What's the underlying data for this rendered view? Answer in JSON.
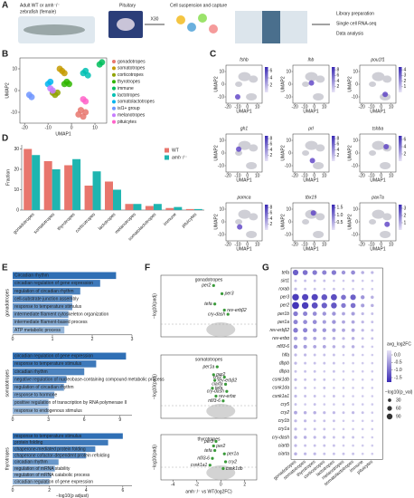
{
  "panel_labels": [
    "A",
    "B",
    "C",
    "D",
    "E",
    "F",
    "G"
  ],
  "workflow": {
    "source_line1": "Adult WT or amh⁻/⁻",
    "source_line2": "zebrafish (female)",
    "organ": "Pituitary",
    "multiplier": "X30",
    "capture": "Cell suspension and capture",
    "steps": [
      "Library preparation",
      "Single cell RNA-seq",
      "Data analysis"
    ]
  },
  "chart_data": [
    {
      "type": "scatter",
      "xlabel": "UMAP1",
      "ylabel": "UMAP2",
      "xlim": [
        -22,
        15
      ],
      "ylim": [
        -15,
        15
      ],
      "xticks": [
        -20,
        -10,
        0,
        10
      ],
      "yticks": [
        -10,
        0,
        10
      ],
      "series": [
        {
          "name": "gonadotropes",
          "color": "#e8766d",
          "x": [
            3,
            5,
            6,
            4
          ],
          "values": [
            -11,
            -12,
            -10,
            -9
          ]
        },
        {
          "name": "somatotropes",
          "color": "#c49a00",
          "x": [
            -4,
            -3,
            -5
          ],
          "values": [
            9,
            8,
            10
          ]
        },
        {
          "name": "corticotropes",
          "color": "#8fa300",
          "x": [
            -8,
            -7,
            -6
          ],
          "values": [
            -1,
            -2,
            -1
          ]
        },
        {
          "name": "thyrotropes",
          "color": "#2fb600",
          "x": [
            -2,
            -1,
            -3
          ],
          "values": [
            4,
            3,
            3
          ]
        },
        {
          "name": "immune",
          "color": "#00bd5c",
          "x": [
            12,
            13
          ],
          "values": [
            12,
            13
          ]
        },
        {
          "name": "lactotropes",
          "color": "#00c0b3",
          "x": [
            5,
            6,
            7
          ],
          "values": [
            8,
            9,
            7
          ]
        },
        {
          "name": "somatolactotropes",
          "color": "#00b4ef",
          "x": [
            -10,
            -9
          ],
          "values": [
            3,
            4
          ]
        },
        {
          "name": "isl1+ group",
          "color": "#6e95ff",
          "x": [
            -18,
            -17
          ],
          "values": [
            -2,
            -3
          ]
        },
        {
          "name": "melanotropes",
          "color": "#c77cff",
          "x": [
            -9,
            -8
          ],
          "values": [
            1,
            0
          ]
        },
        {
          "name": "pituicytes",
          "color": "#ff61c9",
          "x": [
            5,
            6
          ],
          "values": [
            -4,
            -5
          ]
        }
      ]
    },
    {
      "type": "feature",
      "xlabel": "UMAP1",
      "ylabel": "UMAP2",
      "xlim": [
        -22,
        15
      ],
      "ylim": [
        -15,
        15
      ],
      "xticks": [
        -20,
        -10,
        0,
        10
      ],
      "yticks": [
        -10,
        0,
        10
      ],
      "genes": [
        {
          "name": "fshb",
          "lim": [
            0,
            7
          ],
          "ticks": [
            2,
            4,
            6
          ]
        },
        {
          "name": "lhb",
          "lim": [
            0,
            9
          ],
          "ticks": [
            2,
            4,
            6,
            8
          ]
        },
        {
          "name": "pou1f1",
          "lim": [
            0,
            4.5
          ],
          "ticks": [
            1,
            2,
            3,
            4
          ]
        },
        {
          "name": "gh1",
          "lim": [
            0,
            9
          ],
          "ticks": [
            2,
            4,
            6,
            8
          ]
        },
        {
          "name": "prl",
          "lim": [
            0,
            9
          ],
          "ticks": [
            2,
            4,
            6,
            8
          ]
        },
        {
          "name": "tshba",
          "lim": [
            0,
            7
          ],
          "ticks": [
            2,
            4,
            6
          ]
        },
        {
          "name": "pomca",
          "lim": [
            0,
            9
          ],
          "ticks": [
            2,
            4,
            6,
            8
          ]
        },
        {
          "name": "tbx19",
          "lim": [
            0,
            1.7
          ],
          "ticks": [
            0.5,
            {
              "value": 1,
              "label": "1.0"
            },
            1.5
          ]
        },
        {
          "name": "pax7a",
          "lim": [
            0,
            3.5
          ],
          "ticks": [
            1,
            2,
            3
          ]
        }
      ]
    },
    {
      "type": "bar",
      "ylabel": "Fraction",
      "ylim": [
        0,
        32
      ],
      "yticks": [
        0,
        10,
        20,
        30
      ],
      "categories": [
        "gonadotropes",
        "somatotropes",
        "thyrotropes",
        "corticotropes",
        "lactotropes",
        "melanotropes",
        "somatolactotropes",
        "immune",
        "pituicytes"
      ],
      "series": [
        {
          "name": "WT",
          "color": "#e8766d",
          "values": [
            30,
            24,
            22,
            12,
            14,
            3,
            2,
            1,
            0.5
          ]
        },
        {
          "name": "amh⁻/⁻",
          "color": "#1fb5b0",
          "values": [
            27,
            20,
            25,
            19,
            10,
            3,
            3,
            1.5,
            0.5
          ]
        }
      ]
    },
    {
      "type": "barh",
      "ylabel": "gonadotropes",
      "color": "#2f6fb5",
      "xlim": [
        0,
        3
      ],
      "xticks": [
        0,
        1,
        2,
        3
      ],
      "categories": [
        "Circadian rhythm",
        "circadian regulation of gene expression",
        "regulation of circadian rhythm",
        "cell-substrate junction assembly",
        "response to temperature stimulus",
        "intermediate filament cytoskeleton organization",
        "intermediate filament-based process",
        "ATP metabolic process"
      ],
      "values": [
        2.6,
        2.2,
        1.7,
        1.5,
        1.5,
        1.4,
        1.4,
        1.3
      ]
    },
    {
      "type": "barh",
      "ylabel": "somatotropes",
      "color": "#2f6fb5",
      "xlim": [
        0,
        10
      ],
      "xticks": [
        0,
        3,
        6,
        9
      ],
      "categories": [
        "circadian regulation of gene expression",
        "response to temperature stimulus",
        "circadian rhythm",
        "negative regulation of nucleobase-containing compound metabolic process",
        "regulation of circadian rhythm",
        "response to hormone",
        "positive regulation of transcription by RNA polymerase II",
        "response to endogenous stimulus"
      ],
      "values": [
        9.5,
        7,
        6,
        4.5,
        4.3,
        3.5,
        3,
        3
      ]
    },
    {
      "type": "barh",
      "ylabel": "thyrotropes",
      "xlabel": "−log10(p adjust)",
      "color": "#2f6fb5",
      "xlim": [
        0,
        6.5
      ],
      "xticks": [
        0,
        2,
        4,
        6
      ],
      "categories": [
        "response to temperature stimulus",
        "protein folding",
        "chaperone-mediated protein folding",
        "chaperone cofactor-dependent protein refolding",
        "circadian rhythm",
        "regulation of mRNA stability",
        "regulation of mRNA catabolic process",
        "circadian regulation of gene expression"
      ],
      "values": [
        6,
        5.2,
        4.5,
        4,
        2.5,
        2.3,
        2.1,
        2
      ]
    },
    {
      "type": "volcano",
      "title": "gonadotropes",
      "ylabel": "−log10(padj)",
      "color": "#3a9a3a",
      "xlim": [
        -5,
        3
      ],
      "ylim": [
        0,
        6
      ],
      "labels": [
        "per2",
        "per3",
        "tefa",
        "rev-erbβ2",
        "cry-dash"
      ],
      "x": [
        -0.6,
        0.1,
        -0.5,
        0.3,
        0.6
      ],
      "values": [
        5,
        4.2,
        3.2,
        2.6,
        2.2
      ]
    },
    {
      "type": "volcano",
      "title": "somatotropes",
      "ylabel": "−log10(padj)",
      "color": "#3a9a3a",
      "xlim": [
        -5,
        3
      ],
      "ylim": [
        0,
        8
      ],
      "labels": [
        "per1a",
        "per2",
        "cry2",
        "rev-erbβ2",
        "ciarta",
        "tefa",
        "cry-dash",
        "rev-erbα",
        "nfil3-6"
      ],
      "x": [
        -0.3,
        -0.6,
        0.3,
        -0.5,
        0.4,
        -0.7,
        0.5,
        -0.4,
        0.2
      ],
      "values": [
        6.5,
        5.5,
        5.2,
        4.8,
        4.3,
        3.8,
        3.4,
        2.8,
        2.2
      ]
    },
    {
      "type": "volcano",
      "title": "thyrotropes",
      "ylabel": "−log10(padj)",
      "xlabel": "amh⁻/⁻ vs WT(log2FC)",
      "color": "#3a9a3a",
      "xlim": [
        -5,
        3
      ],
      "ylim": [
        0,
        8
      ],
      "xticks": [
        -4,
        -2,
        0,
        2
      ],
      "labels": [
        "per3",
        "per2",
        "tefa",
        "per1a",
        "nfil3-6",
        "cry2",
        "csnk1a1",
        "csnk1db"
      ],
      "x": [
        -0.4,
        -0.6,
        -0.5,
        0.3,
        -0.7,
        0.4,
        -0.9,
        0.2
      ],
      "values": [
        6.8,
        6,
        5.2,
        4.6,
        3.8,
        3.2,
        2.6,
        2
      ]
    },
    {
      "type": "dot",
      "color_label": "avg_log2FC",
      "clim": [
        -1.8,
        0.3
      ],
      "cticks": [
        {
          "value": 0,
          "label": "0.0"
        },
        -0.5,
        {
          "value": -1,
          "label": "-1.0"
        },
        -1.5
      ],
      "size_label": "−log10(p_val)",
      "size_ticks": [
        30,
        60,
        90
      ],
      "categories": [
        "gonadotropes",
        "somatotropes",
        "thyrotropes",
        "corticotropes",
        "lactotropes",
        "melanotropes",
        "somatolactotropes",
        "immune",
        "pituicytes"
      ],
      "genes": [
        "tefa",
        "sirt1",
        "rorab",
        "per3",
        "per2",
        "per1b",
        "per1a",
        "rev-erbβ2",
        "rev-erbα",
        "nfil3-6",
        "hlfa",
        "dbpb",
        "dbpa",
        "csnk1db",
        "csnk1da",
        "csnk1a1",
        "cry5",
        "cry2",
        "cry1b",
        "cry1a",
        "cry-dash",
        "ciartb",
        "ciarta"
      ],
      "values": [
        [
          -1.2,
          -1,
          -0.9,
          -0.8,
          -0.9,
          -0.6,
          -0.7,
          -0.3,
          -0.2
        ],
        [
          -0.1,
          -0.1,
          -0.1,
          -0.1,
          0,
          0,
          -0.1,
          0,
          0
        ],
        [
          -0.2,
          -0.1,
          -0.1,
          0,
          -0.1,
          0,
          0,
          0,
          0
        ],
        [
          -1.6,
          -1.5,
          -1.5,
          -1.3,
          -1.4,
          -1,
          -1.2,
          -0.6,
          -0.3
        ],
        [
          -1.7,
          -1.6,
          -1.4,
          -1.2,
          -1.3,
          -0.9,
          -1,
          -0.5,
          -0.3
        ],
        [
          -0.9,
          -0.8,
          -0.7,
          -0.6,
          -0.6,
          -0.4,
          -0.5,
          -0.2,
          -0.1
        ],
        [
          -0.8,
          -0.7,
          -0.7,
          -0.5,
          -0.6,
          -0.4,
          -0.4,
          -0.2,
          -0.1
        ],
        [
          -0.9,
          -0.8,
          -0.6,
          -0.6,
          -0.5,
          -0.4,
          -0.4,
          -0.2,
          -0.1
        ],
        [
          -0.5,
          -0.5,
          -0.4,
          -0.3,
          -0.3,
          -0.2,
          -0.3,
          -0.1,
          -0.1
        ],
        [
          -0.6,
          -0.5,
          -0.4,
          -0.4,
          -0.3,
          -0.2,
          -0.3,
          -0.1,
          0
        ],
        [
          -0.2,
          -0.2,
          -0.1,
          -0.1,
          -0.1,
          0,
          -0.1,
          0,
          0
        ],
        [
          -0.2,
          -0.1,
          -0.1,
          -0.1,
          -0.1,
          0,
          0,
          0,
          0
        ],
        [
          -0.1,
          -0.1,
          -0.1,
          0,
          -0.1,
          0,
          0,
          0,
          0
        ],
        [
          -0.2,
          -0.1,
          -0.1,
          -0.1,
          0,
          0,
          0,
          0,
          0
        ],
        [
          -0.1,
          -0.1,
          0,
          -0.1,
          0,
          0,
          0,
          0,
          0
        ],
        [
          -0.2,
          -0.1,
          -0.1,
          0,
          -0.1,
          0,
          0,
          0,
          0
        ],
        [
          -0.1,
          0,
          -0.1,
          0,
          0,
          0,
          0,
          0,
          0
        ],
        [
          -0.4,
          -0.3,
          -0.3,
          -0.2,
          -0.2,
          -0.1,
          -0.2,
          -0.1,
          0
        ],
        [
          -0.2,
          -0.2,
          -0.1,
          -0.1,
          -0.1,
          0,
          0,
          0,
          0
        ],
        [
          -0.2,
          -0.1,
          -0.1,
          -0.1,
          0,
          0,
          0,
          0,
          0
        ],
        [
          -0.3,
          -0.3,
          -0.2,
          -0.2,
          -0.1,
          -0.1,
          -0.1,
          0,
          0
        ],
        [
          -0.2,
          -0.1,
          -0.1,
          -0.1,
          -0.1,
          0,
          0,
          0,
          0
        ],
        [
          -0.3,
          -0.2,
          -0.2,
          -0.1,
          -0.1,
          -0.1,
          -0.1,
          0,
          0
        ]
      ]
    }
  ]
}
